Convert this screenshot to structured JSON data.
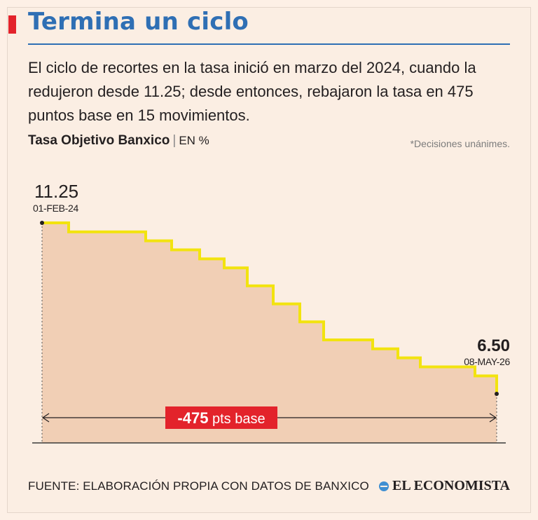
{
  "header": {
    "title": "Termina un ciclo",
    "intro": "El ciclo de recortes en la tasa inició en marzo del 2024, cuando la redujeron desde 11.25; desde entonces, rebajaron la tasa en 475 puntos base en 15 movimientos.",
    "accent_color": "#e3232b",
    "title_color": "#2f6fb4"
  },
  "chart_data": {
    "type": "line",
    "style": "step",
    "title": "Tasa Objetivo Banxico",
    "unit": "EN %",
    "note": "*Decisiones unánimes.",
    "values": [
      11.25,
      11.0,
      10.75,
      10.5,
      10.25,
      10.0,
      9.5,
      9.0,
      8.5,
      8.0,
      7.75,
      7.5,
      7.25,
      7.0,
      6.75,
      6.5
    ],
    "ylim": [
      6.5,
      11.25
    ],
    "start": {
      "value": "11.25",
      "date": "01-FEB-24"
    },
    "end": {
      "value": "6.50",
      "date": "08-MAY-26"
    },
    "span_label": "-475 pts base",
    "span_value": "-475",
    "span_unit": "pts base",
    "line_color": "#f2e30f",
    "fill_color": "#efc9ad"
  },
  "footer": {
    "source": "FUENTE: ELABORACIÓN PROPIA CON DATOS DE BANXICO",
    "brand": "EL ECONOMISTA"
  }
}
